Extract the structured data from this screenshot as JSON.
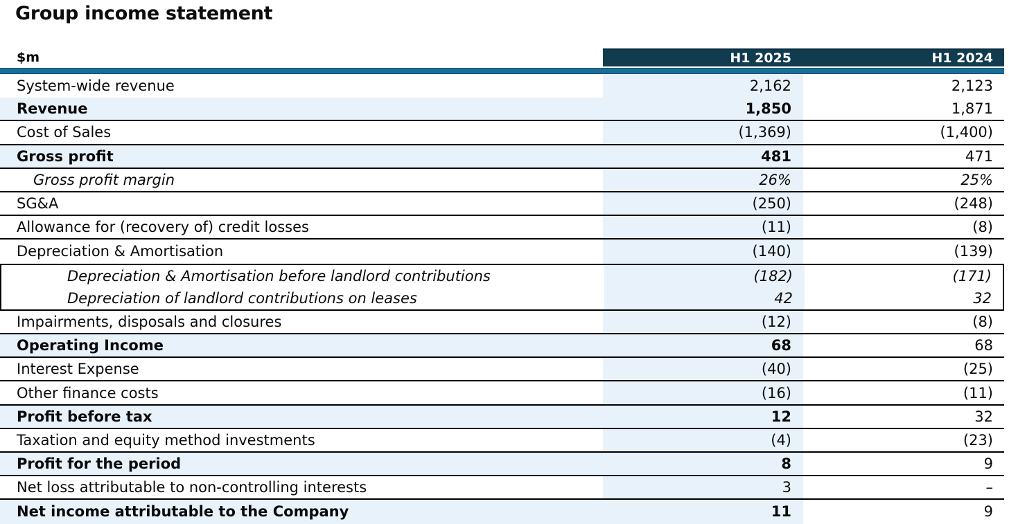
{
  "title": "Group income statement",
  "colors": {
    "header_bg": "#113b4f",
    "accent_bar": "#1b6e97",
    "row_highlight": "#e8f2fa",
    "border": "#000000",
    "header_text": "#ffffff"
  },
  "table": {
    "unit": "$m",
    "columns": [
      "H1 2025",
      "H1 2024"
    ],
    "rows": [
      {
        "label": "System-wide revenue",
        "h1_2025": "2,162",
        "h1_2024": "2,123",
        "bold": false,
        "italic": false,
        "indent": 0,
        "sep": false,
        "box": null
      },
      {
        "label": "Revenue",
        "h1_2025": "1,850",
        "h1_2024": "1,871",
        "bold": true,
        "italic": false,
        "indent": 0,
        "sep": true,
        "box": null
      },
      {
        "label": "Cost of Sales",
        "h1_2025": "(1,369)",
        "h1_2024": "(1,400)",
        "bold": false,
        "italic": false,
        "indent": 0,
        "sep": true,
        "box": null
      },
      {
        "label": "Gross profit",
        "h1_2025": "481",
        "h1_2024": "471",
        "bold": true,
        "italic": false,
        "indent": 0,
        "sep": true,
        "box": null
      },
      {
        "label": "Gross profit margin",
        "h1_2025": "26%",
        "h1_2024": "25%",
        "bold": false,
        "italic": true,
        "indent": 1,
        "sep": true,
        "box": null
      },
      {
        "label": "SG&A",
        "h1_2025": "(250)",
        "h1_2024": "(248)",
        "bold": false,
        "italic": false,
        "indent": 0,
        "sep": true,
        "box": null
      },
      {
        "label": "Allowance for (recovery of) credit losses",
        "h1_2025": "(11)",
        "h1_2024": "(8)",
        "bold": false,
        "italic": false,
        "indent": 0,
        "sep": true,
        "box": null
      },
      {
        "label": "Depreciation & Amortisation",
        "h1_2025": "(140)",
        "h1_2024": "(139)",
        "bold": false,
        "italic": false,
        "indent": 0,
        "sep": false,
        "box": null
      },
      {
        "label": "Depreciation & Amortisation before landlord contributions",
        "h1_2025": "(182)",
        "h1_2024": "(171)",
        "bold": false,
        "italic": true,
        "indent": 2,
        "sep": false,
        "box": "start"
      },
      {
        "label": "Depreciation of landlord contributions on leases",
        "h1_2025": "42",
        "h1_2024": "32",
        "bold": false,
        "italic": true,
        "indent": 2,
        "sep": false,
        "box": "end"
      },
      {
        "label": "Impairments, disposals and closures",
        "h1_2025": "(12)",
        "h1_2024": "(8)",
        "bold": false,
        "italic": false,
        "indent": 0,
        "sep": true,
        "box": null
      },
      {
        "label": "Operating Income",
        "h1_2025": "68",
        "h1_2024": "68",
        "bold": true,
        "italic": false,
        "indent": 0,
        "sep": true,
        "box": null
      },
      {
        "label": "Interest Expense",
        "h1_2025": "(40)",
        "h1_2024": "(25)",
        "bold": false,
        "italic": false,
        "indent": 0,
        "sep": true,
        "box": null
      },
      {
        "label": "Other finance costs",
        "h1_2025": "(16)",
        "h1_2024": "(11)",
        "bold": false,
        "italic": false,
        "indent": 0,
        "sep": true,
        "box": null
      },
      {
        "label": "Profit before tax",
        "h1_2025": "12",
        "h1_2024": "32",
        "bold": true,
        "italic": false,
        "indent": 0,
        "sep": true,
        "box": null
      },
      {
        "label": "Taxation and equity method investments",
        "h1_2025": "(4)",
        "h1_2024": "(23)",
        "bold": false,
        "italic": false,
        "indent": 0,
        "sep": true,
        "box": null
      },
      {
        "label": "Profit for the period",
        "h1_2025": "8",
        "h1_2024": "9",
        "bold": true,
        "italic": false,
        "indent": 0,
        "sep": true,
        "box": null
      },
      {
        "label": "Net loss attributable to non-controlling interests",
        "h1_2025": "3",
        "h1_2024": "–",
        "bold": false,
        "italic": false,
        "indent": 0,
        "sep": true,
        "box": null
      },
      {
        "label": "Net income attributable to the Company",
        "h1_2025": "11",
        "h1_2024": "9",
        "bold": true,
        "italic": false,
        "indent": 0,
        "sep": false,
        "box": null
      }
    ]
  }
}
